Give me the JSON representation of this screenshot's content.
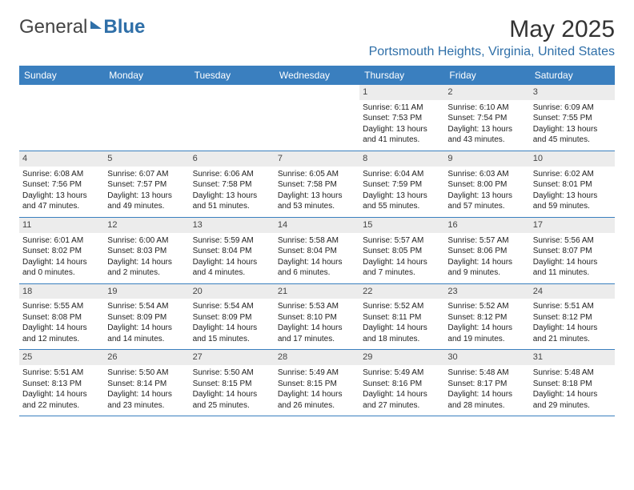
{
  "logo": {
    "part1": "General",
    "part2": "Blue"
  },
  "title": "May 2025",
  "location": "Portsmouth Heights, Virginia, United States",
  "colors": {
    "header_bg": "#3a7fbf",
    "header_text": "#ffffff",
    "daynum_bg": "#ececec",
    "border": "#3a7fbf",
    "location_color": "#2f6fa8"
  },
  "day_labels": [
    "Sunday",
    "Monday",
    "Tuesday",
    "Wednesday",
    "Thursday",
    "Friday",
    "Saturday"
  ],
  "weeks": [
    [
      {
        "day": "",
        "sunrise": "",
        "sunset": "",
        "daylight1": "",
        "daylight2": ""
      },
      {
        "day": "",
        "sunrise": "",
        "sunset": "",
        "daylight1": "",
        "daylight2": ""
      },
      {
        "day": "",
        "sunrise": "",
        "sunset": "",
        "daylight1": "",
        "daylight2": ""
      },
      {
        "day": "",
        "sunrise": "",
        "sunset": "",
        "daylight1": "",
        "daylight2": ""
      },
      {
        "day": "1",
        "sunrise": "Sunrise: 6:11 AM",
        "sunset": "Sunset: 7:53 PM",
        "daylight1": "Daylight: 13 hours",
        "daylight2": "and 41 minutes."
      },
      {
        "day": "2",
        "sunrise": "Sunrise: 6:10 AM",
        "sunset": "Sunset: 7:54 PM",
        "daylight1": "Daylight: 13 hours",
        "daylight2": "and 43 minutes."
      },
      {
        "day": "3",
        "sunrise": "Sunrise: 6:09 AM",
        "sunset": "Sunset: 7:55 PM",
        "daylight1": "Daylight: 13 hours",
        "daylight2": "and 45 minutes."
      }
    ],
    [
      {
        "day": "4",
        "sunrise": "Sunrise: 6:08 AM",
        "sunset": "Sunset: 7:56 PM",
        "daylight1": "Daylight: 13 hours",
        "daylight2": "and 47 minutes."
      },
      {
        "day": "5",
        "sunrise": "Sunrise: 6:07 AM",
        "sunset": "Sunset: 7:57 PM",
        "daylight1": "Daylight: 13 hours",
        "daylight2": "and 49 minutes."
      },
      {
        "day": "6",
        "sunrise": "Sunrise: 6:06 AM",
        "sunset": "Sunset: 7:58 PM",
        "daylight1": "Daylight: 13 hours",
        "daylight2": "and 51 minutes."
      },
      {
        "day": "7",
        "sunrise": "Sunrise: 6:05 AM",
        "sunset": "Sunset: 7:58 PM",
        "daylight1": "Daylight: 13 hours",
        "daylight2": "and 53 minutes."
      },
      {
        "day": "8",
        "sunrise": "Sunrise: 6:04 AM",
        "sunset": "Sunset: 7:59 PM",
        "daylight1": "Daylight: 13 hours",
        "daylight2": "and 55 minutes."
      },
      {
        "day": "9",
        "sunrise": "Sunrise: 6:03 AM",
        "sunset": "Sunset: 8:00 PM",
        "daylight1": "Daylight: 13 hours",
        "daylight2": "and 57 minutes."
      },
      {
        "day": "10",
        "sunrise": "Sunrise: 6:02 AM",
        "sunset": "Sunset: 8:01 PM",
        "daylight1": "Daylight: 13 hours",
        "daylight2": "and 59 minutes."
      }
    ],
    [
      {
        "day": "11",
        "sunrise": "Sunrise: 6:01 AM",
        "sunset": "Sunset: 8:02 PM",
        "daylight1": "Daylight: 14 hours",
        "daylight2": "and 0 minutes."
      },
      {
        "day": "12",
        "sunrise": "Sunrise: 6:00 AM",
        "sunset": "Sunset: 8:03 PM",
        "daylight1": "Daylight: 14 hours",
        "daylight2": "and 2 minutes."
      },
      {
        "day": "13",
        "sunrise": "Sunrise: 5:59 AM",
        "sunset": "Sunset: 8:04 PM",
        "daylight1": "Daylight: 14 hours",
        "daylight2": "and 4 minutes."
      },
      {
        "day": "14",
        "sunrise": "Sunrise: 5:58 AM",
        "sunset": "Sunset: 8:04 PM",
        "daylight1": "Daylight: 14 hours",
        "daylight2": "and 6 minutes."
      },
      {
        "day": "15",
        "sunrise": "Sunrise: 5:57 AM",
        "sunset": "Sunset: 8:05 PM",
        "daylight1": "Daylight: 14 hours",
        "daylight2": "and 7 minutes."
      },
      {
        "day": "16",
        "sunrise": "Sunrise: 5:57 AM",
        "sunset": "Sunset: 8:06 PM",
        "daylight1": "Daylight: 14 hours",
        "daylight2": "and 9 minutes."
      },
      {
        "day": "17",
        "sunrise": "Sunrise: 5:56 AM",
        "sunset": "Sunset: 8:07 PM",
        "daylight1": "Daylight: 14 hours",
        "daylight2": "and 11 minutes."
      }
    ],
    [
      {
        "day": "18",
        "sunrise": "Sunrise: 5:55 AM",
        "sunset": "Sunset: 8:08 PM",
        "daylight1": "Daylight: 14 hours",
        "daylight2": "and 12 minutes."
      },
      {
        "day": "19",
        "sunrise": "Sunrise: 5:54 AM",
        "sunset": "Sunset: 8:09 PM",
        "daylight1": "Daylight: 14 hours",
        "daylight2": "and 14 minutes."
      },
      {
        "day": "20",
        "sunrise": "Sunrise: 5:54 AM",
        "sunset": "Sunset: 8:09 PM",
        "daylight1": "Daylight: 14 hours",
        "daylight2": "and 15 minutes."
      },
      {
        "day": "21",
        "sunrise": "Sunrise: 5:53 AM",
        "sunset": "Sunset: 8:10 PM",
        "daylight1": "Daylight: 14 hours",
        "daylight2": "and 17 minutes."
      },
      {
        "day": "22",
        "sunrise": "Sunrise: 5:52 AM",
        "sunset": "Sunset: 8:11 PM",
        "daylight1": "Daylight: 14 hours",
        "daylight2": "and 18 minutes."
      },
      {
        "day": "23",
        "sunrise": "Sunrise: 5:52 AM",
        "sunset": "Sunset: 8:12 PM",
        "daylight1": "Daylight: 14 hours",
        "daylight2": "and 19 minutes."
      },
      {
        "day": "24",
        "sunrise": "Sunrise: 5:51 AM",
        "sunset": "Sunset: 8:12 PM",
        "daylight1": "Daylight: 14 hours",
        "daylight2": "and 21 minutes."
      }
    ],
    [
      {
        "day": "25",
        "sunrise": "Sunrise: 5:51 AM",
        "sunset": "Sunset: 8:13 PM",
        "daylight1": "Daylight: 14 hours",
        "daylight2": "and 22 minutes."
      },
      {
        "day": "26",
        "sunrise": "Sunrise: 5:50 AM",
        "sunset": "Sunset: 8:14 PM",
        "daylight1": "Daylight: 14 hours",
        "daylight2": "and 23 minutes."
      },
      {
        "day": "27",
        "sunrise": "Sunrise: 5:50 AM",
        "sunset": "Sunset: 8:15 PM",
        "daylight1": "Daylight: 14 hours",
        "daylight2": "and 25 minutes."
      },
      {
        "day": "28",
        "sunrise": "Sunrise: 5:49 AM",
        "sunset": "Sunset: 8:15 PM",
        "daylight1": "Daylight: 14 hours",
        "daylight2": "and 26 minutes."
      },
      {
        "day": "29",
        "sunrise": "Sunrise: 5:49 AM",
        "sunset": "Sunset: 8:16 PM",
        "daylight1": "Daylight: 14 hours",
        "daylight2": "and 27 minutes."
      },
      {
        "day": "30",
        "sunrise": "Sunrise: 5:48 AM",
        "sunset": "Sunset: 8:17 PM",
        "daylight1": "Daylight: 14 hours",
        "daylight2": "and 28 minutes."
      },
      {
        "day": "31",
        "sunrise": "Sunrise: 5:48 AM",
        "sunset": "Sunset: 8:18 PM",
        "daylight1": "Daylight: 14 hours",
        "daylight2": "and 29 minutes."
      }
    ]
  ]
}
